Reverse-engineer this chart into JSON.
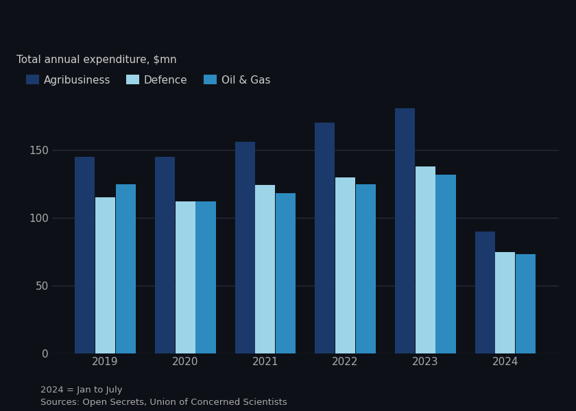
{
  "years": [
    "2019",
    "2020",
    "2021",
    "2022",
    "2023",
    "2024"
  ],
  "agribusiness": [
    145,
    145,
    156,
    170,
    181,
    90
  ],
  "defence": [
    115,
    112,
    124,
    130,
    138,
    75
  ],
  "oil_gas": [
    125,
    112,
    118,
    125,
    132,
    73
  ],
  "series_labels": [
    "Agribusiness",
    "Defence",
    "Oil & Gas"
  ],
  "colors": {
    "agribusiness": "#1b3a6b",
    "defence": "#9dd4e8",
    "oil_gas": "#2e8bc0"
  },
  "ylabel": "Total annual expenditure, $mn",
  "ylim": [
    0,
    200
  ],
  "yticks": [
    0,
    50,
    100,
    150
  ],
  "footnote1": "2024 = Jan to July",
  "footnote2": "Sources: Open Secrets, Union of Concerned Scientists",
  "background_color": "#0d1117",
  "plot_bg_color": "#0d1117",
  "grid_color": "#2a2a3a",
  "text_color": "#cccccc",
  "tick_color": "#aaaaaa"
}
